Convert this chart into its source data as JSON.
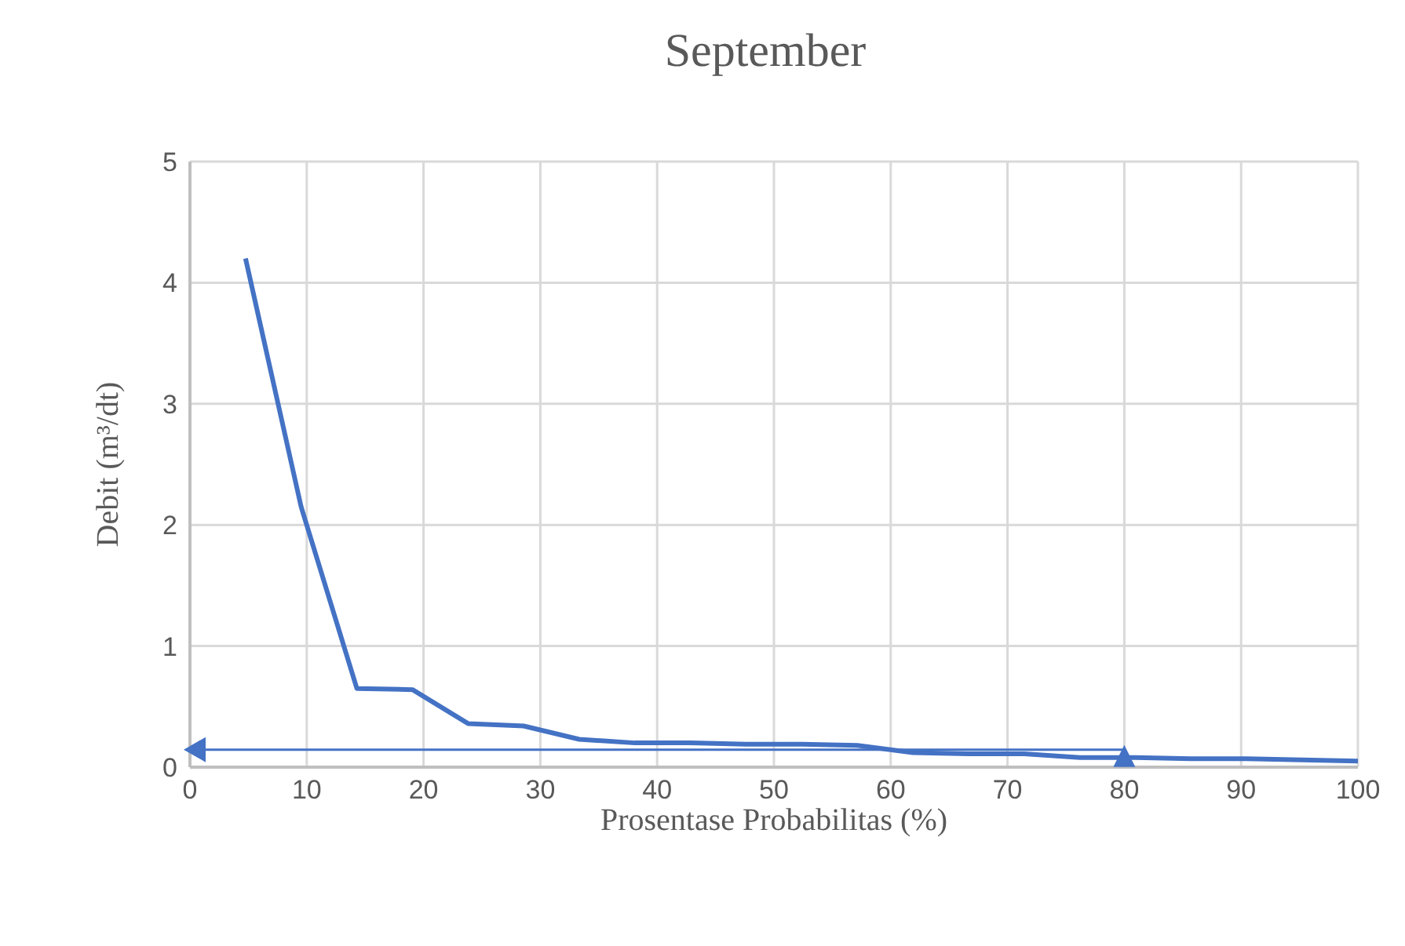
{
  "chart_data": {
    "type": "line",
    "title": "September",
    "xlabel": "Prosentase Probabilitas (%)",
    "ylabel": "Debit (m³/dt)",
    "xlim": [
      0,
      100
    ],
    "xticks": [
      0,
      10,
      20,
      30,
      40,
      50,
      60,
      70,
      80,
      90,
      100
    ],
    "ylim": [
      0,
      5
    ],
    "yticks": [
      0,
      1,
      2,
      3,
      4,
      5
    ],
    "grid": true,
    "series": [
      {
        "color": "#4472c4",
        "x": [
          4.76,
          9.52,
          14.29,
          19.05,
          23.81,
          28.57,
          33.33,
          38.1,
          42.86,
          47.62,
          52.38,
          57.14,
          61.9,
          66.67,
          71.43,
          76.19,
          80.95,
          85.71,
          90.48,
          95.24,
          100
        ],
        "values": [
          4.2,
          2.15,
          0.65,
          0.64,
          0.36,
          0.34,
          0.23,
          0.2,
          0.2,
          0.19,
          0.19,
          0.18,
          0.12,
          0.11,
          0.11,
          0.08,
          0.08,
          0.07,
          0.07,
          0.06,
          0.05
        ],
        "marker": "none"
      },
      {
        "type": "scatter",
        "color": "#4472c4",
        "x": [
          80
        ],
        "values": [
          0.08
        ],
        "marker": "triangle"
      }
    ]
  }
}
